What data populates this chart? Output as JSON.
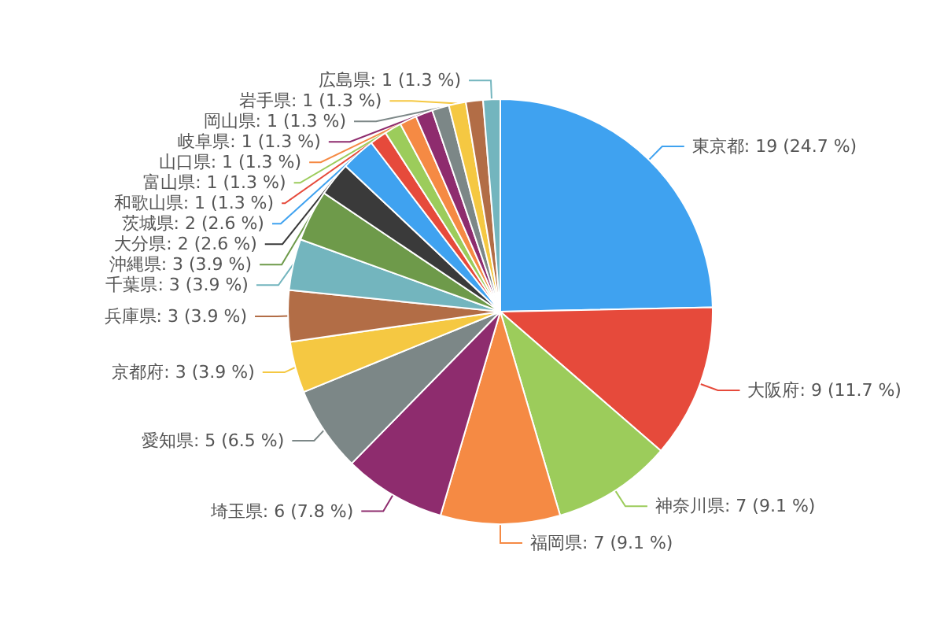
{
  "chart_data": {
    "type": "pie",
    "categories": [
      "東京都",
      "大阪府",
      "神奈川県",
      "福岡県",
      "埼玉県",
      "愛知県",
      "京都府",
      "兵庫県",
      "千葉県",
      "沖縄県",
      "大分県",
      "茨城県",
      "和歌山県",
      "富山県",
      "山口県",
      "岐阜県",
      "岡山県",
      "岩手県",
      null,
      "広島県"
    ],
    "values": [
      19,
      9,
      7,
      7,
      6,
      5,
      3,
      3,
      3,
      3,
      2,
      2,
      1,
      1,
      1,
      1,
      1,
      1,
      1,
      1
    ],
    "value_labels": [
      "19 (24.7 %)",
      "9 (11.7 %)",
      "7 (9.1 %)",
      "7 (9.1 %)",
      "6 (7.8 %)",
      "5 (6.5 %)",
      "3 (3.9 %)",
      "3 (3.9 %)",
      "3 (3.9 %)",
      "3 (3.9 %)",
      "2 (2.6 %)",
      "2 (2.6 %)",
      "1 (1.3 %)",
      "1 (1.3 %)",
      "1 (1.3 %)",
      "1 (1.3 %)",
      "1 (1.3 %)",
      "1 (1.3 %)",
      null,
      "1 (1.3 %)"
    ],
    "colors": [
      "#3fa2f0",
      "#e64a3b",
      "#9ccc5b",
      "#f58a44",
      "#8e2c6e",
      "#7c8787",
      "#f5c842",
      "#b26d46",
      "#73b5be",
      "#6e9a4a",
      "#3a3a3a",
      "#3fa2f0",
      "#e64a3b",
      "#9ccc5b",
      "#f58a44",
      "#8e2c6e",
      "#7c8787",
      "#f5c842",
      "#b26d46",
      "#73b5be"
    ]
  }
}
